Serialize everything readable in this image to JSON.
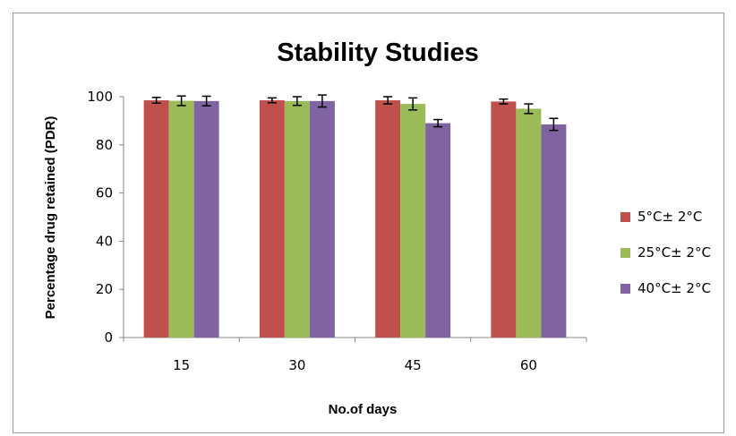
{
  "chart_data": {
    "type": "bar",
    "title": "Stability Studies",
    "xlabel": "No.of days",
    "ylabel": "Percentage drug retained (PDR)",
    "categories": [
      "15",
      "30",
      "45",
      "60"
    ],
    "ylim": [
      0,
      100
    ],
    "yticks": [
      0,
      20,
      40,
      60,
      80,
      100
    ],
    "grid": false,
    "legend_position": "right",
    "series": [
      {
        "name": "5°C± 2°C",
        "color": "#c0504d",
        "values": [
          98.5,
          98.5,
          98.5,
          98.0
        ],
        "errors": [
          1.2,
          1.0,
          1.5,
          1.0
        ]
      },
      {
        "name": "25°C± 2°C",
        "color": "#9bbb59",
        "values": [
          98.3,
          98.2,
          97.0,
          95.0
        ],
        "errors": [
          2.0,
          1.8,
          2.5,
          2.0
        ]
      },
      {
        "name": "40°C± 2°C",
        "color": "#8064a2",
        "values": [
          98.2,
          98.2,
          89.0,
          88.5
        ],
        "errors": [
          2.0,
          2.5,
          1.5,
          2.5
        ]
      }
    ]
  }
}
